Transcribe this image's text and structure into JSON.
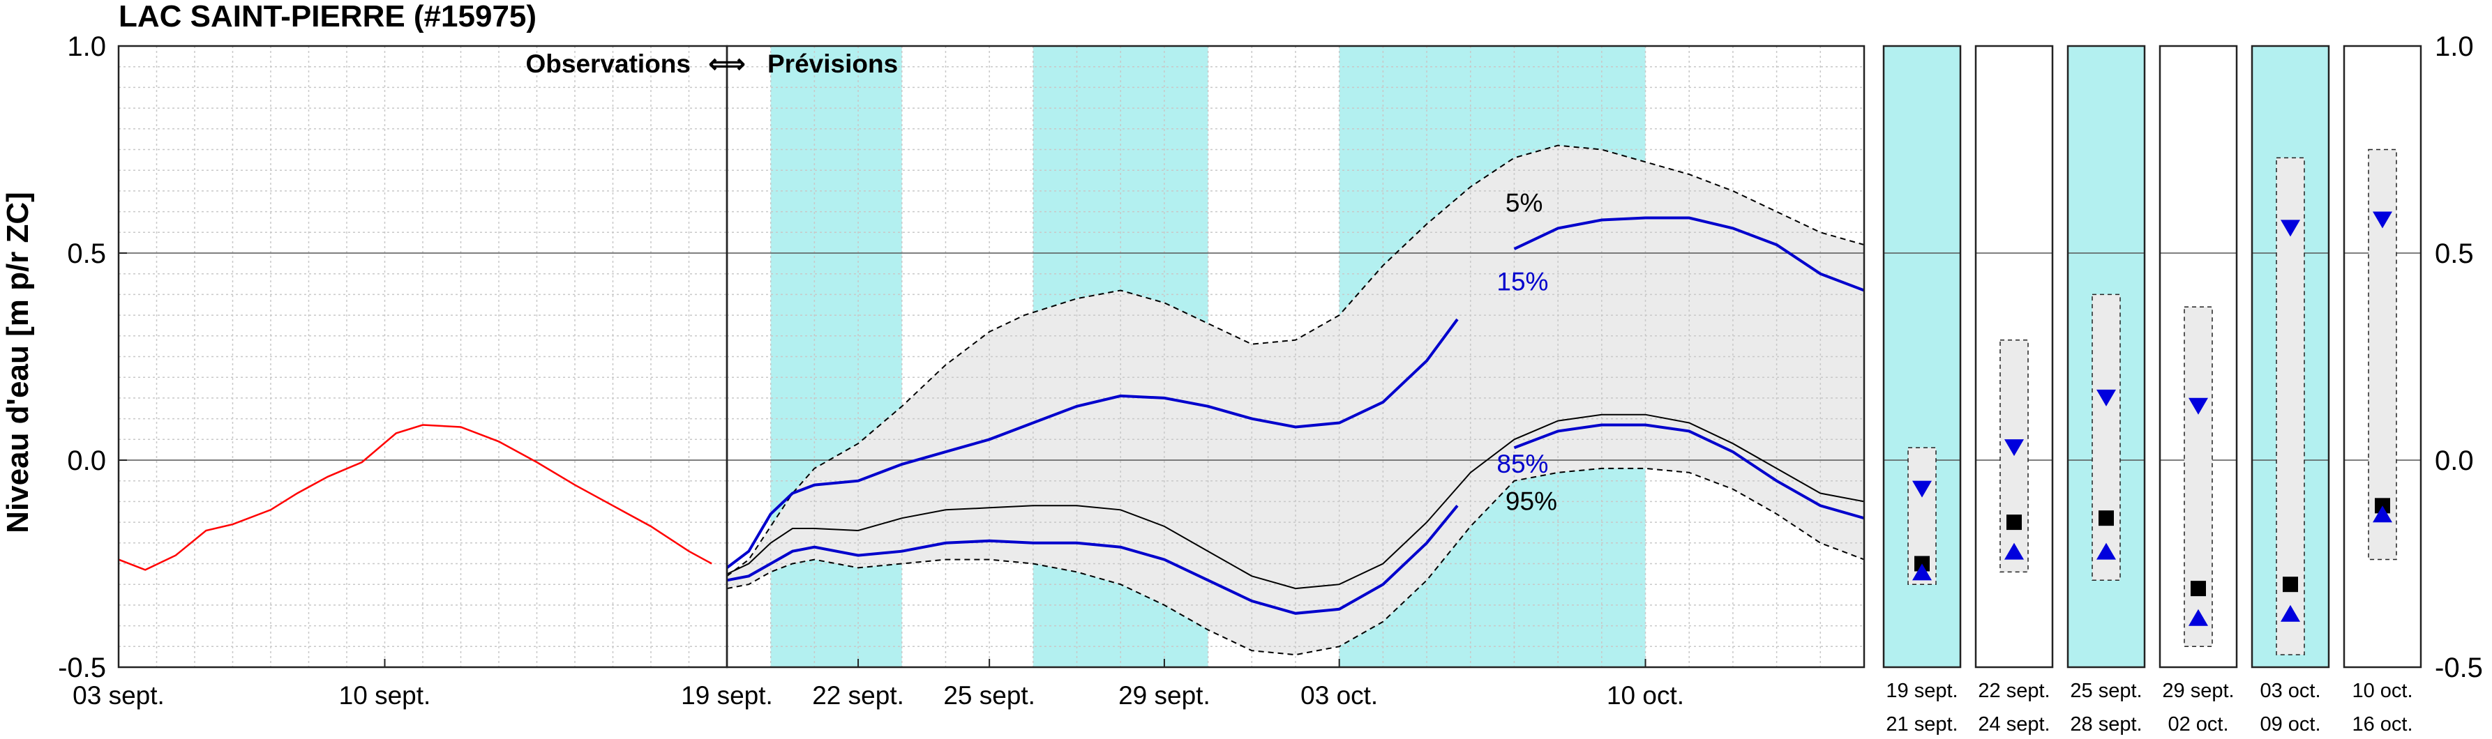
{
  "title": "LAC SAINT-PIERRE (#15975)",
  "ylabel": "Niveau d'eau [m p/r ZC]",
  "observations_label": "Observations",
  "previsions_label": "Prévisions",
  "arrow_glyph": "⟺",
  "chart_data": {
    "type": "line",
    "title": "LAC SAINT-PIERRE (#15975)",
    "xlabel": "",
    "ylabel": "Niveau d'eau [m p/r ZC]",
    "ylim": [
      -0.5,
      1.0
    ],
    "yticks": [
      "1.0",
      "0.5",
      "0.0",
      "-0.5"
    ],
    "yticks_right": [
      "1.0",
      "0.5",
      "0.0",
      "-0.5"
    ],
    "grid": true,
    "legend": "none",
    "observations": {
      "x_range": [
        "03 sept.",
        "19 sept."
      ],
      "xticks": [
        "03 sept.",
        "10 sept."
      ],
      "series": [
        {
          "color": "#ff0000",
          "x": [
            0,
            0.7,
            1.5,
            2.3,
            3.0,
            4.0,
            4.7,
            5.5,
            6.4,
            7.3,
            8.0,
            9.0,
            10.0,
            11.0,
            12.0,
            13.0,
            14.0,
            15.0,
            15.6
          ],
          "y": [
            -0.24,
            -0.265,
            -0.23,
            -0.17,
            -0.155,
            -0.12,
            -0.08,
            -0.04,
            -0.005,
            0.065,
            0.085,
            0.08,
            0.045,
            -0.005,
            -0.06,
            -0.11,
            -0.16,
            -0.22,
            -0.25
          ]
        }
      ]
    },
    "forecast": {
      "x_range": [
        "19 sept.",
        "15 oct."
      ],
      "xticks": [
        "19 sept.",
        "22 sept.",
        "25 sept.",
        "29 sept.",
        "03 oct.",
        "10 oct."
      ],
      "shaded_periods": [
        [
          "20 sept.",
          "22 sept."
        ],
        [
          "25 sept.",
          "28 sept."
        ],
        [
          "03 oct.",
          "09 oct."
        ]
      ],
      "shade_color": "#b3f0f0",
      "band_color": "#ebebeb",
      "series": [
        {
          "label": "5%",
          "color": "#000000",
          "style": "dashed",
          "x": [
            0,
            0.5,
            1.0,
            1.5,
            2.0,
            3.0,
            4.0,
            5.0,
            6.0,
            6.8,
            8.0,
            9.0,
            10.0,
            11.0,
            12.0,
            13.0,
            14.0,
            15.0,
            16.0,
            17.0,
            18.0,
            19.0,
            20.0,
            21.0,
            22.0,
            23.0,
            24.0,
            25.0,
            26.0
          ],
          "y": [
            -0.28,
            -0.24,
            -0.16,
            -0.08,
            -0.02,
            0.04,
            0.13,
            0.23,
            0.31,
            0.35,
            0.39,
            0.41,
            0.38,
            0.33,
            0.28,
            0.29,
            0.35,
            0.47,
            0.57,
            0.66,
            0.73,
            0.76,
            0.75,
            0.72,
            0.69,
            0.65,
            0.6,
            0.55,
            0.52
          ]
        },
        {
          "label": "15%",
          "color": "#0000cc",
          "style": "solid",
          "x": [
            0,
            0.5,
            1.0,
            1.5,
            2.0,
            3.0,
            4.0,
            5.0,
            6.0,
            7.0,
            8.0,
            9.0,
            10.0,
            11.0,
            12.0,
            13.0,
            14.0,
            15.0,
            16.0,
            16.7
          ],
          "y": [
            -0.26,
            -0.22,
            -0.13,
            -0.08,
            -0.06,
            -0.05,
            -0.01,
            0.02,
            0.05,
            0.09,
            0.13,
            0.155,
            0.15,
            0.13,
            0.1,
            0.08,
            0.09,
            0.14,
            0.24,
            0.34
          ]
        },
        {
          "color": "#0000cc",
          "style": "solid",
          "x": [
            18.0,
            19.0,
            20.0,
            21.0,
            22.0,
            23.0,
            24.0,
            25.0,
            26.0
          ],
          "y": [
            0.51,
            0.56,
            0.58,
            0.585,
            0.585,
            0.56,
            0.52,
            0.45,
            0.41
          ]
        },
        {
          "label": "85%",
          "color": "#0000cc",
          "style": "solid",
          "x": [
            0,
            0.5,
            1.0,
            1.5,
            2.0,
            3.0,
            4.0,
            5.0,
            6.0,
            7.0,
            8.0,
            9.0,
            10.0,
            11.0,
            12.0,
            13.0,
            14.0,
            15.0,
            16.0,
            16.7
          ],
          "y": [
            -0.29,
            -0.28,
            -0.25,
            -0.22,
            -0.21,
            -0.23,
            -0.22,
            -0.2,
            -0.195,
            -0.2,
            -0.2,
            -0.21,
            -0.24,
            -0.29,
            -0.34,
            -0.37,
            -0.36,
            -0.3,
            -0.2,
            -0.11
          ]
        },
        {
          "color": "#0000cc",
          "style": "solid",
          "x": [
            18.0,
            19.0,
            20.0,
            21.0,
            22.0,
            23.0,
            24.0,
            25.0,
            26.0
          ],
          "y": [
            0.03,
            0.07,
            0.085,
            0.085,
            0.07,
            0.02,
            -0.05,
            -0.11,
            -0.14
          ]
        },
        {
          "label": "95%",
          "color": "#000000",
          "style": "solid",
          "x": [
            0,
            0.5,
            1.0,
            1.5,
            2.0,
            3.0,
            4.0,
            5.0,
            6.0,
            7.0,
            8.0,
            9.0,
            10.0,
            11.0,
            12.0,
            13.0,
            14.0,
            15.0,
            16.0,
            17.0,
            18.0,
            19.0,
            20.0,
            21.0,
            22.0,
            23.0,
            24.0,
            25.0,
            26.0
          ],
          "y": [
            -0.275,
            -0.25,
            -0.2,
            -0.165,
            -0.165,
            -0.17,
            -0.14,
            -0.12,
            -0.115,
            -0.11,
            -0.11,
            -0.12,
            -0.16,
            -0.22,
            -0.28,
            -0.31,
            -0.3,
            -0.25,
            -0.15,
            -0.03,
            0.05,
            0.095,
            0.11,
            0.11,
            0.09,
            0.04,
            -0.02,
            -0.08,
            -0.1
          ]
        },
        {
          "color": "#000000",
          "style": "dashed",
          "x": [
            0,
            0.5,
            1.0,
            1.5,
            2.0,
            3.0,
            4.0,
            5.0,
            6.0,
            7.0,
            8.0,
            9.0,
            10.0,
            11.0,
            12.0,
            13.0,
            14.0,
            15.0,
            16.0,
            17.0,
            18.0,
            19.0,
            20.0,
            21.0,
            22.0,
            23.0,
            24.0,
            25.0,
            26.0
          ],
          "y": [
            -0.31,
            -0.3,
            -0.27,
            -0.25,
            -0.24,
            -0.26,
            -0.25,
            -0.24,
            -0.24,
            -0.25,
            -0.27,
            -0.3,
            -0.35,
            -0.41,
            -0.46,
            -0.47,
            -0.45,
            -0.39,
            -0.29,
            -0.16,
            -0.05,
            -0.03,
            -0.02,
            -0.02,
            -0.03,
            -0.07,
            -0.13,
            -0.2,
            -0.24
          ]
        }
      ],
      "percent_labels": [
        {
          "text": "5%",
          "color": "#000000",
          "x": 17.8,
          "y": 0.6
        },
        {
          "text": "15%",
          "color": "#0000cc",
          "x": 17.6,
          "y": 0.41
        },
        {
          "text": "85%",
          "color": "#0000cc",
          "x": 17.6,
          "y": -0.03
        },
        {
          "text": "95%",
          "color": "#000000",
          "x": 17.8,
          "y": -0.12
        }
      ]
    },
    "periods": [
      {
        "label1": "19 sept.",
        "label2": "21 sept.",
        "shaded": true,
        "box": [
          -0.3,
          0.03
        ],
        "tri_down": -0.07,
        "square": -0.25,
        "tri_up": -0.27
      },
      {
        "label1": "22 sept.",
        "label2": "24 sept.",
        "shaded": false,
        "box": [
          -0.27,
          0.29
        ],
        "tri_down": 0.03,
        "square": -0.15,
        "tri_up": -0.22
      },
      {
        "label1": "25 sept.",
        "label2": "28 sept.",
        "shaded": true,
        "box": [
          -0.29,
          0.4
        ],
        "tri_down": 0.15,
        "square": -0.14,
        "tri_up": -0.22
      },
      {
        "label1": "29 sept.",
        "label2": "02 oct.",
        "shaded": false,
        "box": [
          -0.45,
          0.37
        ],
        "tri_down": 0.13,
        "square": -0.31,
        "tri_up": -0.38
      },
      {
        "label1": "03 oct.",
        "label2": "09 oct.",
        "shaded": true,
        "box": [
          -0.47,
          0.73
        ],
        "tri_down": 0.56,
        "square": -0.3,
        "tri_up": -0.37
      },
      {
        "label1": "10 oct.",
        "label2": "16 oct.",
        "shaded": false,
        "box": [
          -0.24,
          0.75
        ],
        "tri_down": 0.58,
        "square": -0.11,
        "tri_up": -0.13
      }
    ]
  }
}
